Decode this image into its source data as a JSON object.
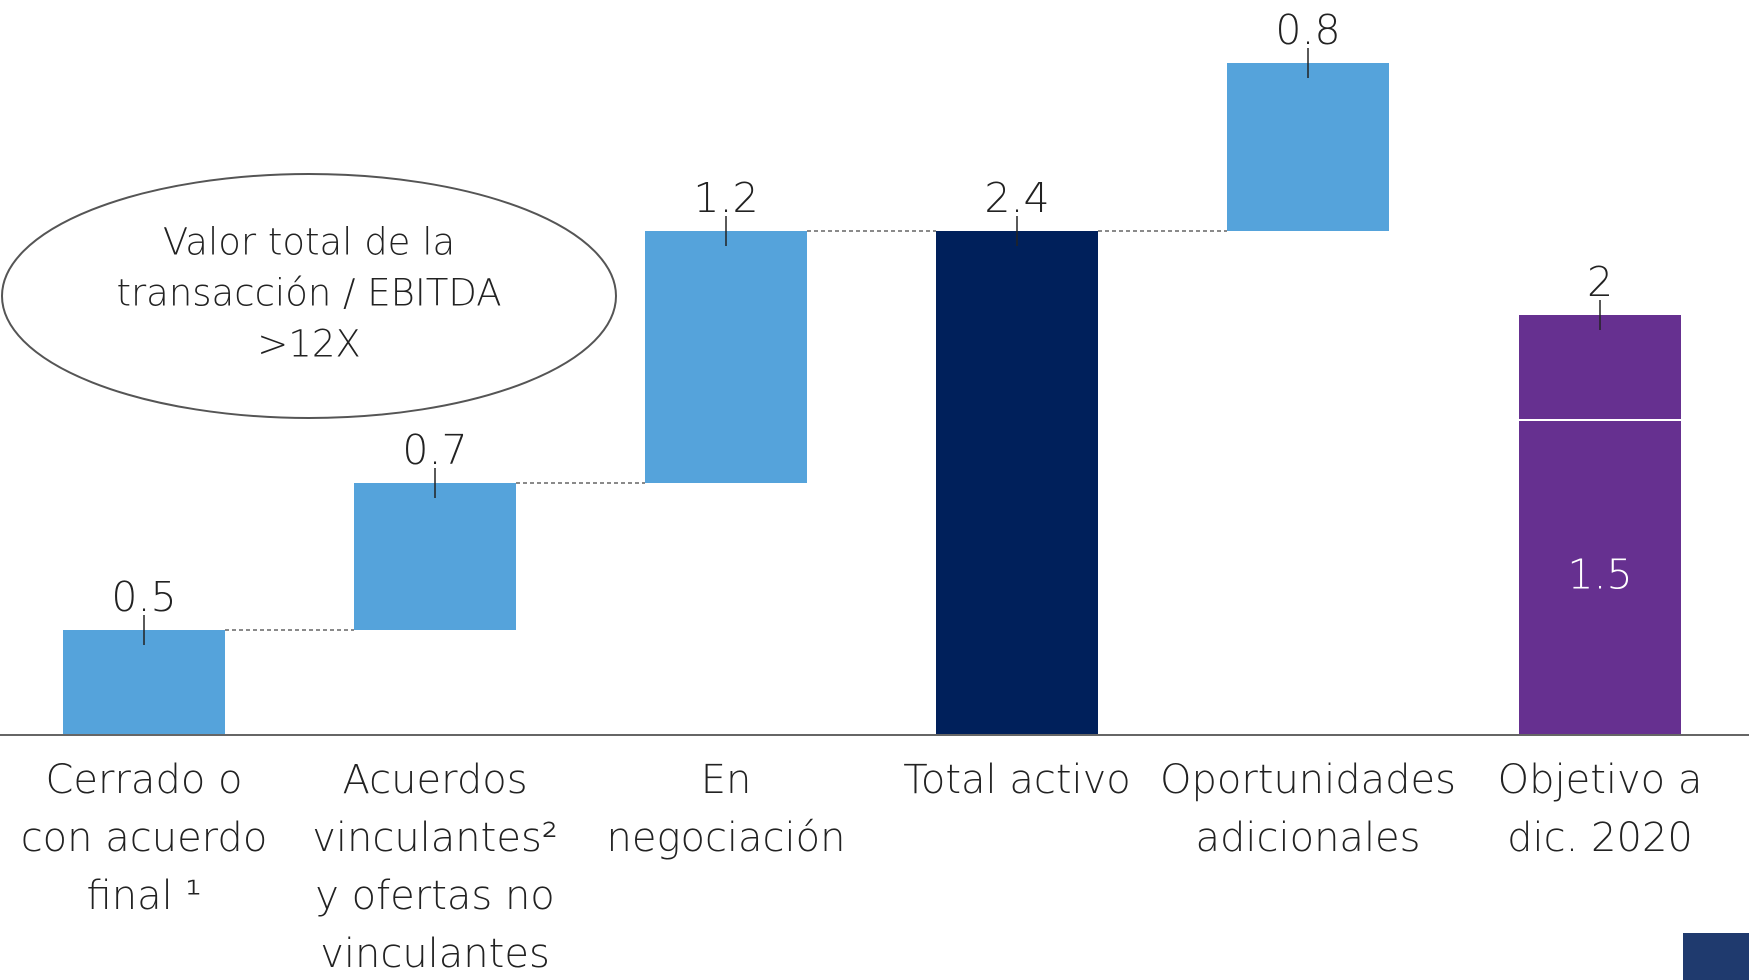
{
  "chart_data": {
    "type": "waterfall",
    "categories": [
      [
        "Cerrado o",
        "con acuerdo",
        "final ¹"
      ],
      [
        "Acuerdos",
        "vinculantes²",
        "y ofertas no",
        "vinculantes"
      ],
      [
        "En",
        "negociación"
      ],
      [
        "Total activo"
      ],
      [
        "Oportunidades",
        "adicionales"
      ],
      [
        "Objetivo a",
        "dic. 2020"
      ]
    ],
    "values": [
      0.5,
      0.7,
      1.2,
      2.4,
      0.8,
      2.0
    ],
    "kinds": [
      "delta",
      "delta",
      "delta",
      "total",
      "delta",
      "total"
    ],
    "colors": [
      "#55a3db",
      "#55a3db",
      "#55a3db",
      "#00205b",
      "#55a3db",
      "#663090"
    ],
    "split": {
      "index": 5,
      "value": 1.5
    },
    "ylim": [
      0,
      3.5
    ],
    "annotation": [
      "Valor total de la",
      "transacción / EBITDA",
      ">12X"
    ]
  }
}
